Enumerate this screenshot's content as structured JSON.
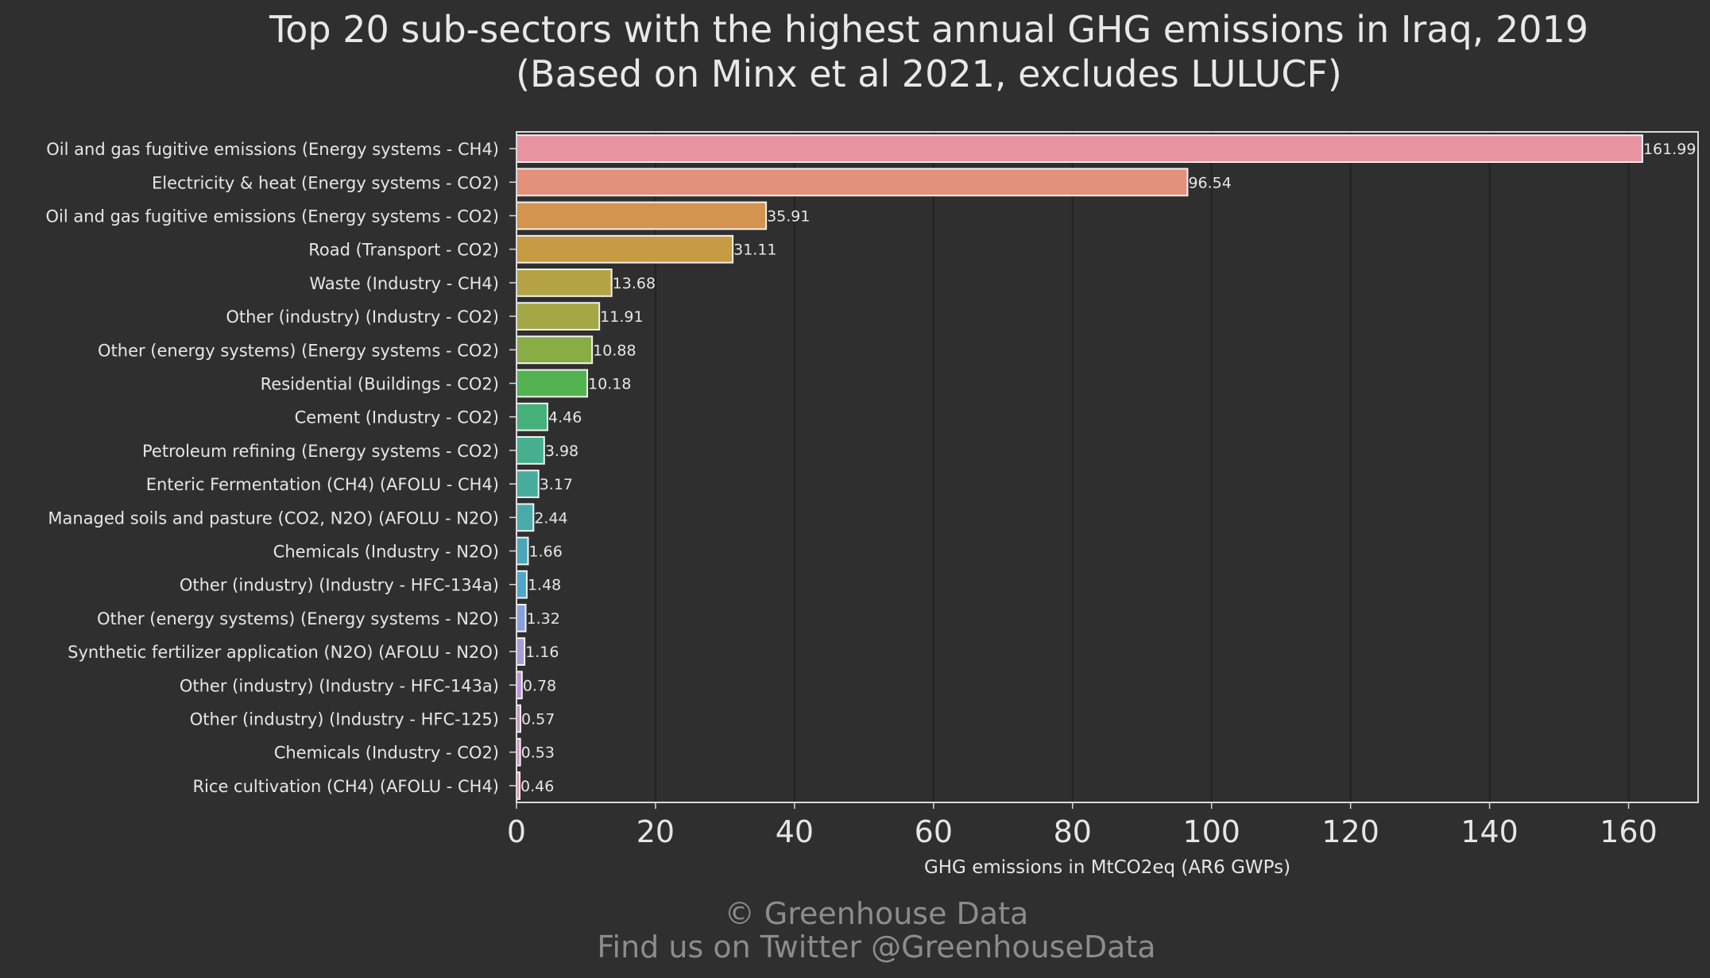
{
  "chart_data": {
    "type": "bar",
    "orientation": "horizontal",
    "title": "Top 20 sub-sectors with the highest annual GHG emissions in Iraq, 2019",
    "subtitle": "(Based on Minx et al 2021, excludes LULUCF)",
    "xlabel": "GHG emissions in MtCO2eq (AR6 GWPs)",
    "ylabel": "",
    "xlim": [
      0,
      170
    ],
    "xticks": [
      0,
      20,
      40,
      60,
      80,
      100,
      120,
      140,
      160
    ],
    "grid": "vertical",
    "categories": [
      "Oil and gas fugitive emissions (Energy systems - CH4)",
      "Electricity & heat (Energy systems - CO2)",
      "Oil and gas fugitive emissions (Energy systems - CO2)",
      "Road (Transport - CO2)",
      "Waste (Industry - CH4)",
      "Other (industry) (Industry - CO2)",
      "Other (energy systems) (Energy systems - CO2)",
      "Residential (Buildings - CO2)",
      "Cement (Industry - CO2)",
      "Petroleum refining (Energy systems - CO2)",
      "Enteric Fermentation (CH4) (AFOLU - CH4)",
      "Managed soils and pasture (CO2, N2O) (AFOLU - N2O)",
      "Chemicals (Industry - N2O)",
      "Other (industry) (Industry - HFC-134a)",
      "Other (energy systems) (Energy systems - N2O)",
      "Synthetic fertilizer application (N2O) (AFOLU - N2O)",
      "Other (industry) (Industry - HFC-143a)",
      "Other (industry) (Industry - HFC-125)",
      "Chemicals (Industry - CO2)",
      "Rice cultivation (CH4) (AFOLU - CH4)"
    ],
    "values": [
      161.99,
      96.54,
      35.91,
      31.11,
      13.68,
      11.91,
      10.88,
      10.18,
      4.46,
      3.98,
      3.17,
      2.44,
      1.66,
      1.48,
      1.32,
      1.16,
      0.78,
      0.57,
      0.53,
      0.46
    ],
    "value_labels": [
      "161.99",
      "96.54",
      "35.91",
      "31.11",
      "13.68",
      "11.91",
      "10.88",
      "10.18",
      "4.46",
      "3.98",
      "3.17",
      "2.44",
      "1.66",
      "1.48",
      "1.32",
      "1.16",
      "0.78",
      "0.57",
      "0.53",
      "0.46"
    ],
    "colors": [
      "#e8949f",
      "#e4917c",
      "#d4934e",
      "#c79a44",
      "#b5a245",
      "#a4a746",
      "#8aac47",
      "#54b351",
      "#46b07a",
      "#47ae8e",
      "#48ac9c",
      "#49aaa8",
      "#4aa7b7",
      "#4ea6cc",
      "#8aa0d9",
      "#a99bde",
      "#c193da",
      "#d08dce",
      "#df8ac0",
      "#e68dae"
    ]
  },
  "colors": {
    "background": "#2f2f2f",
    "text": "#e6e6e6",
    "grid": "#222222",
    "frame": "#d9d9d9",
    "bar_edge": "#f2f2f2",
    "footer": "#8c8c8c"
  },
  "footer": {
    "copyright": "© Greenhouse Data",
    "twitter": "Find us on Twitter @GreenhouseData"
  }
}
